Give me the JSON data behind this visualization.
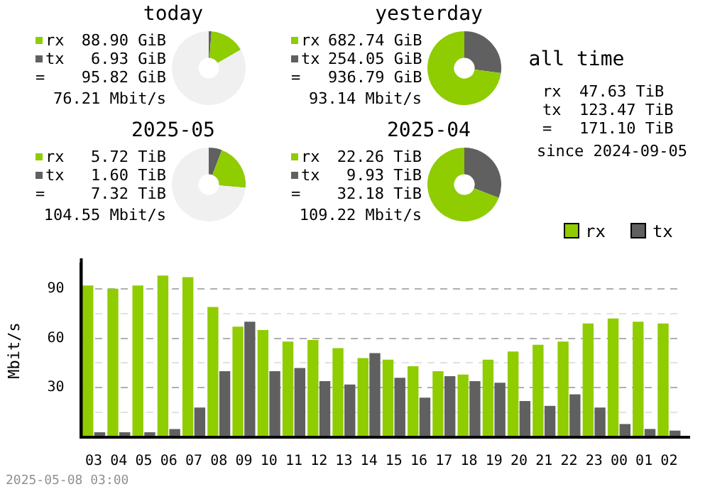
{
  "chart_data": [
    {
      "type": "donut",
      "title": "today",
      "categories": [
        "rx",
        "tx",
        null
      ],
      "values": [
        88.9,
        6.93,
        479
      ],
      "colors": [
        "#8fcc00",
        "#606060",
        "#f0f0f0"
      ],
      "value_labels": [
        "88.90 GiB",
        "6.93 GiB",
        null
      ],
      "legend": "left",
      "annotations": [
        "=",
        "95.82 GiB",
        "76.21 Mbit/s"
      ]
    },
    {
      "type": "donut",
      "title": "yesterday",
      "categories": [
        "rx",
        "tx"
      ],
      "values": [
        682.74,
        254.05
      ],
      "colors": [
        "#8fcc00",
        "#606060"
      ],
      "value_labels": [
        "682.74 GiB",
        "254.05 GiB"
      ],
      "legend": "left",
      "annotations": [
        "=",
        "936.79 GiB",
        "93.14 Mbit/s"
      ]
    },
    {
      "type": "donut",
      "title": "2025-05",
      "categories": [
        "rx",
        "tx",
        null
      ],
      "values": [
        5.72,
        1.6,
        20.4
      ],
      "colors": [
        "#8fcc00",
        "#606060",
        "#f0f0f0"
      ],
      "value_labels": [
        "5.72 TiB",
        "1.60 TiB",
        null
      ],
      "legend": "left",
      "annotations": [
        "=",
        "7.32 TiB",
        "104.55 Mbit/s"
      ]
    },
    {
      "type": "donut",
      "title": "2025-04",
      "categories": [
        "rx",
        "tx"
      ],
      "values": [
        22.26,
        9.93
      ],
      "colors": [
        "#8fcc00",
        "#606060"
      ],
      "value_labels": [
        "22.26 TiB",
        "9.93 TiB"
      ],
      "legend": "left",
      "annotations": [
        "=",
        "32.18 TiB",
        "109.22 Mbit/s"
      ]
    },
    {
      "type": "other",
      "title": "all time",
      "annotations": [
        "rx",
        "47.63 TiB",
        "tx",
        "123.47 TiB",
        "=",
        "171.10 TiB",
        "since 2024-09-05"
      ]
    },
    {
      "type": "bar",
      "ylabel": "Mbit/s",
      "categories": [
        "03",
        "04",
        "05",
        "06",
        "07",
        "08",
        "09",
        "10",
        "11",
        "12",
        "13",
        "14",
        "15",
        "16",
        "17",
        "18",
        "19",
        "20",
        "21",
        "22",
        "23",
        "00",
        "01",
        "02"
      ],
      "series": [
        {
          "name": "rx",
          "color": "#8fcc00",
          "values": [
            92,
            90,
            92,
            98,
            97,
            79,
            67,
            65,
            58,
            59,
            54,
            48,
            47,
            43,
            40,
            38,
            47,
            52,
            56,
            58,
            69,
            72,
            70,
            69
          ]
        },
        {
          "name": "tx",
          "color": "#606060",
          "values": [
            3,
            3,
            3,
            5,
            18,
            40,
            70,
            40,
            42,
            34,
            32,
            51,
            36,
            24,
            37,
            34,
            33,
            22,
            19,
            26,
            18,
            8,
            5,
            4
          ]
        }
      ],
      "ylim": [
        0,
        105
      ],
      "yticks": [
        {
          "value": 15,
          "label": null
        },
        30,
        {
          "value": 45,
          "label": null
        },
        60,
        {
          "value": 75,
          "label": null
        },
        90
      ],
      "grid": "y",
      "legend": "top right",
      "annotations": [
        "2025-05-08 03:00"
      ]
    }
  ]
}
